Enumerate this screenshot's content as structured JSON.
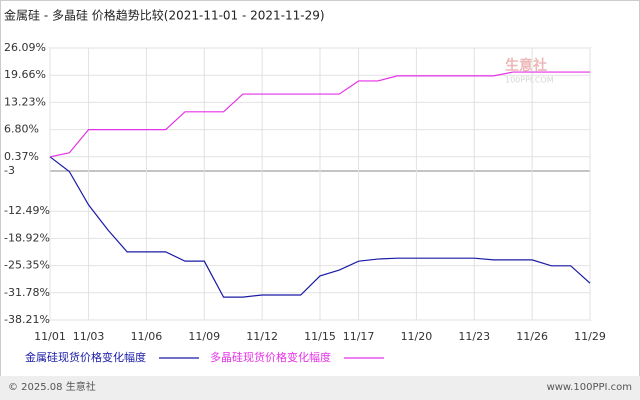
{
  "chart_data": {
    "type": "line",
    "title": "金属硅 - 多晶硅 价格趋势比较(2021-11-01 - 2021-11-29)",
    "categories": [
      "11/01",
      null,
      "11/03",
      null,
      null,
      "11/06",
      null,
      null,
      "11/09",
      null,
      null,
      "11/12",
      null,
      null,
      "11/15",
      null,
      "11/17",
      null,
      null,
      "11/20",
      null,
      null,
      "11/23",
      null,
      null,
      "11/26",
      null,
      null,
      "11/29"
    ],
    "series": [
      {
        "name": "金属硅现货价格变化幅度",
        "color": "#1a1aa6",
        "values": [
          0.37,
          -3.1,
          -11.0,
          -16.9,
          -22.1,
          -22.1,
          -22.1,
          -24.3,
          -24.3,
          -32.8,
          -32.8,
          -32.3,
          -32.3,
          -32.3,
          -27.8,
          -26.4,
          -24.3,
          -23.8,
          -23.6,
          -23.6,
          -23.6,
          -23.6,
          -23.6,
          -24.0,
          -24.0,
          -24.0,
          -25.4,
          -25.4,
          -29.5
        ]
      },
      {
        "name": "多晶硅现货价格变化幅度",
        "color": "#e632e6",
        "values": [
          0.37,
          1.3,
          6.8,
          6.8,
          6.8,
          6.8,
          6.8,
          11.0,
          11.0,
          11.0,
          15.2,
          15.2,
          15.2,
          15.2,
          15.2,
          15.2,
          18.3,
          18.3,
          19.5,
          19.5,
          19.5,
          19.5,
          19.5,
          19.5,
          20.4,
          20.4,
          20.4,
          20.4,
          20.4
        ]
      }
    ],
    "ylim": [
      -38.21,
      26.09
    ],
    "yticks": [
      {
        "value": 26.09,
        "label": "26.09%"
      },
      {
        "value": 19.66,
        "label": "19.66%"
      },
      {
        "value": 13.23,
        "label": "13.23%"
      },
      {
        "value": 6.8,
        "label": "6.80%"
      },
      {
        "value": 0.37,
        "label": "0.37%"
      },
      -3,
      {
        "value": -12.49,
        "label": "-12.49%"
      },
      {
        "value": -18.92,
        "label": "-18.92%"
      },
      {
        "value": -25.35,
        "label": "-25.35%"
      },
      {
        "value": -31.78,
        "label": "-31.78%"
      },
      {
        "value": -38.21,
        "label": "-38.21%"
      }
    ],
    "grid": true,
    "watermark": {
      "name": "生意社",
      "url": "100PPI.COM"
    },
    "footer": {
      "left": "© 2025.08 生意社",
      "right": "www.100PPI.com"
    }
  }
}
